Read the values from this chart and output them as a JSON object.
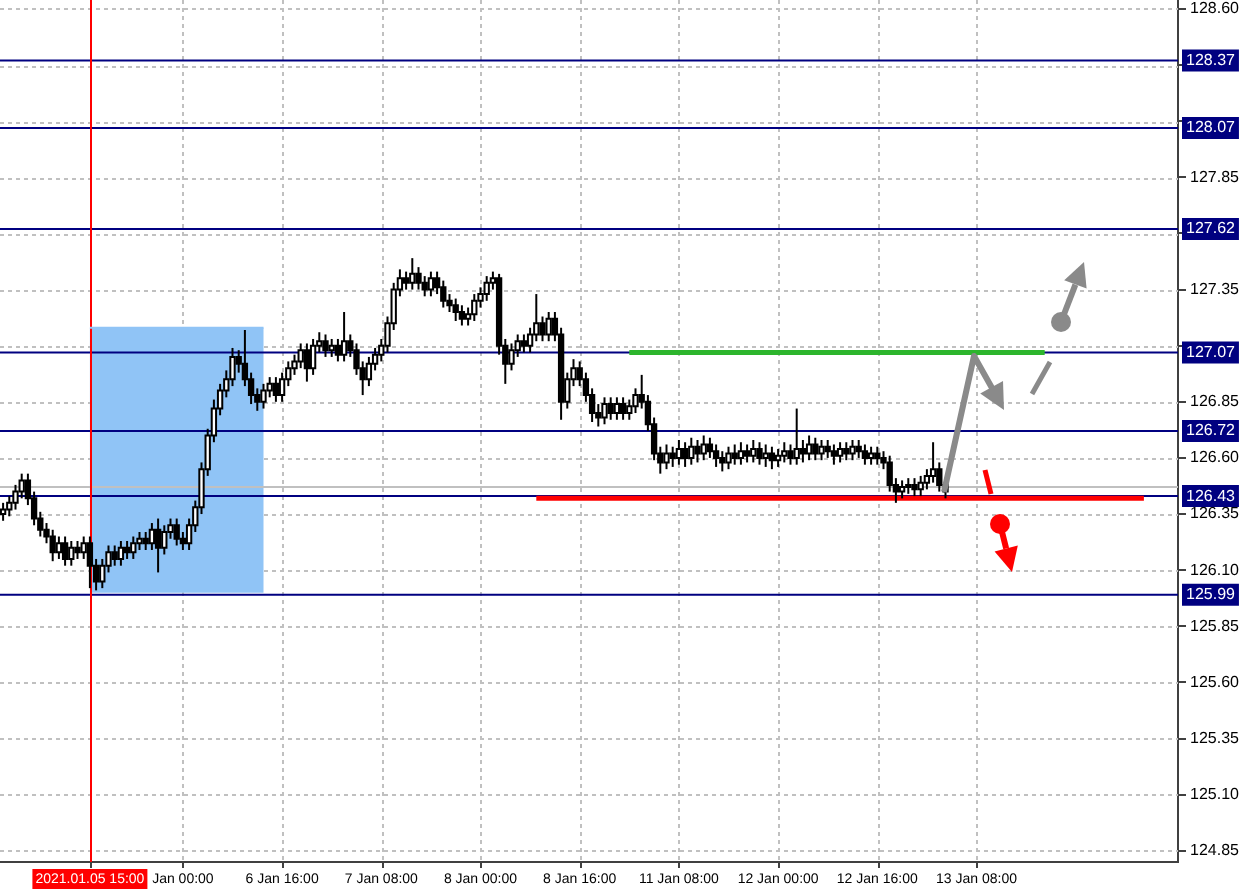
{
  "chart_data": {
    "type": "candlestick",
    "categories": [
      null,
      null,
      null,
      null,
      null,
      null,
      null,
      null,
      null,
      null,
      null,
      null,
      null,
      null,
      "2021.01.05 15:00",
      null,
      null,
      null,
      null,
      null,
      null,
      null,
      null,
      null,
      null,
      null,
      null,
      null,
      null,
      "Jan 00:00",
      null,
      null,
      null,
      null,
      null,
      null,
      null,
      null,
      null,
      null,
      null,
      null,
      null,
      null,
      null,
      "6 Jan 16:00",
      null,
      null,
      null,
      null,
      null,
      null,
      null,
      null,
      null,
      null,
      null,
      null,
      null,
      null,
      null,
      "7 Jan 08:00",
      null,
      null,
      null,
      null,
      null,
      null,
      null,
      null,
      null,
      null,
      null,
      null,
      null,
      null,
      null,
      "8 Jan 00:00",
      null,
      null,
      null,
      null,
      null,
      null,
      null,
      null,
      null,
      null,
      null,
      null,
      null,
      null,
      null,
      "8 Jan 16:00",
      null,
      null,
      null,
      null,
      null,
      null,
      null,
      null,
      null,
      null,
      null,
      null,
      null,
      null,
      null,
      "11 Jan 08:00",
      null,
      null,
      null,
      null,
      null,
      null,
      null,
      null,
      null,
      null,
      null,
      null,
      null,
      null,
      null,
      "12 Jan 00:00",
      null,
      null,
      null,
      null,
      null,
      null,
      null,
      null,
      null,
      null,
      null,
      null,
      null,
      null,
      null,
      "12 Jan 16:00",
      null,
      null,
      null,
      null,
      null,
      null,
      null,
      null,
      null,
      null,
      null,
      null,
      null,
      null,
      null,
      "13 Jan 08:00",
      null,
      null,
      null,
      null,
      null,
      null,
      null,
      null,
      null,
      null,
      null,
      null,
      null,
      null,
      null,
      null,
      null,
      null,
      null,
      null,
      null,
      null,
      null,
      null,
      null,
      null,
      null,
      null,
      null,
      null,
      null,
      null
    ],
    "ohlc": [
      [
        126.35,
        126.4,
        126.32,
        126.37
      ],
      [
        126.37,
        126.43,
        126.34,
        126.4
      ],
      [
        126.4,
        126.48,
        126.37,
        126.45
      ],
      [
        126.45,
        126.53,
        126.42,
        126.5
      ],
      [
        126.5,
        126.53,
        126.39,
        126.42
      ],
      [
        126.42,
        126.45,
        126.3,
        126.33
      ],
      [
        126.33,
        126.36,
        126.25,
        126.28
      ],
      [
        126.28,
        126.31,
        126.22,
        126.25
      ],
      [
        126.25,
        126.28,
        126.14,
        126.18
      ],
      [
        126.18,
        126.25,
        126.15,
        126.22
      ],
      [
        126.22,
        126.25,
        126.12,
        126.15
      ],
      [
        126.15,
        126.23,
        126.12,
        126.2
      ],
      [
        126.2,
        126.23,
        126.15,
        126.18
      ],
      [
        126.18,
        126.25,
        126.15,
        126.22
      ],
      [
        126.22,
        126.25,
        126.02,
        126.12
      ],
      [
        126.12,
        126.15,
        126.01,
        126.05
      ],
      [
        126.05,
        126.15,
        126.02,
        126.12
      ],
      [
        126.12,
        126.21,
        126.09,
        126.18
      ],
      [
        126.18,
        126.21,
        126.12,
        126.15
      ],
      [
        126.15,
        126.23,
        126.12,
        126.2
      ],
      [
        126.2,
        126.23,
        126.15,
        126.18
      ],
      [
        126.18,
        126.25,
        126.15,
        126.22
      ],
      [
        126.22,
        126.27,
        126.19,
        126.24
      ],
      [
        126.24,
        126.27,
        126.19,
        126.22
      ],
      [
        126.22,
        126.31,
        126.19,
        126.28
      ],
      [
        126.28,
        126.33,
        126.09,
        126.2
      ],
      [
        126.2,
        126.3,
        126.17,
        126.27
      ],
      [
        126.27,
        126.33,
        126.24,
        126.3
      ],
      [
        126.3,
        126.33,
        126.21,
        126.24
      ],
      [
        126.24,
        126.27,
        126.19,
        126.22
      ],
      [
        126.22,
        126.33,
        126.19,
        126.3
      ],
      [
        126.3,
        126.41,
        126.27,
        126.38
      ],
      [
        126.38,
        126.58,
        126.35,
        126.55
      ],
      [
        126.55,
        126.73,
        126.52,
        126.7
      ],
      [
        126.7,
        126.86,
        126.67,
        126.82
      ],
      [
        126.82,
        126.93,
        126.79,
        126.9
      ],
      [
        126.9,
        126.99,
        126.87,
        126.95
      ],
      [
        126.95,
        127.09,
        126.92,
        127.05
      ],
      [
        127.05,
        127.08,
        126.98,
        127.02
      ],
      [
        127.02,
        127.17,
        126.92,
        126.95
      ],
      [
        126.95,
        126.98,
        126.84,
        126.88
      ],
      [
        126.88,
        126.91,
        126.81,
        126.85
      ],
      [
        126.85,
        126.93,
        126.82,
        126.9
      ],
      [
        126.9,
        126.96,
        126.87,
        126.93
      ],
      [
        126.93,
        126.96,
        126.85,
        126.88
      ],
      [
        126.88,
        126.98,
        126.85,
        126.95
      ],
      [
        126.95,
        127.03,
        126.92,
        127.0
      ],
      [
        127.0,
        127.06,
        126.97,
        127.03
      ],
      [
        127.03,
        127.11,
        127.0,
        127.08
      ],
      [
        127.08,
        127.11,
        126.94,
        127.0
      ],
      [
        127.0,
        127.13,
        126.97,
        127.1
      ],
      [
        127.1,
        127.16,
        127.07,
        127.12
      ],
      [
        127.12,
        127.15,
        127.05,
        127.08
      ],
      [
        127.08,
        127.13,
        127.05,
        127.1
      ],
      [
        127.1,
        127.13,
        127.03,
        127.06
      ],
      [
        127.06,
        127.25,
        127.03,
        127.12
      ],
      [
        127.12,
        127.15,
        127.05,
        127.08
      ],
      [
        127.08,
        127.11,
        126.97,
        127.0
      ],
      [
        127.0,
        127.03,
        126.88,
        126.95
      ],
      [
        126.95,
        127.05,
        126.92,
        127.02
      ],
      [
        127.02,
        127.09,
        126.99,
        127.06
      ],
      [
        127.06,
        127.13,
        127.03,
        127.1
      ],
      [
        127.1,
        127.23,
        127.07,
        127.2
      ],
      [
        127.2,
        127.38,
        127.17,
        127.35
      ],
      [
        127.35,
        127.44,
        127.32,
        127.4
      ],
      [
        127.4,
        127.43,
        127.35,
        127.38
      ],
      [
        127.38,
        127.49,
        127.35,
        127.42
      ],
      [
        127.42,
        127.45,
        127.35,
        127.38
      ],
      [
        127.38,
        127.41,
        127.32,
        127.35
      ],
      [
        127.35,
        127.43,
        127.32,
        127.4
      ],
      [
        127.4,
        127.43,
        127.33,
        127.36
      ],
      [
        127.36,
        127.39,
        127.27,
        127.3
      ],
      [
        127.3,
        127.33,
        127.25,
        127.28
      ],
      [
        127.28,
        127.31,
        127.21,
        127.25
      ],
      [
        127.25,
        127.28,
        127.19,
        127.22
      ],
      [
        127.22,
        127.27,
        127.19,
        127.24
      ],
      [
        127.24,
        127.33,
        127.21,
        127.3
      ],
      [
        127.3,
        127.36,
        127.27,
        127.33
      ],
      [
        127.33,
        127.41,
        127.3,
        127.38
      ],
      [
        127.38,
        127.43,
        127.35,
        127.4
      ],
      [
        127.4,
        127.42,
        127.06,
        127.1
      ],
      [
        127.1,
        127.13,
        126.93,
        127.02
      ],
      [
        127.02,
        127.11,
        126.99,
        127.08
      ],
      [
        127.08,
        127.15,
        127.05,
        127.12
      ],
      [
        127.12,
        127.15,
        127.07,
        127.1
      ],
      [
        127.1,
        127.18,
        127.07,
        127.15
      ],
      [
        127.15,
        127.33,
        127.12,
        127.2
      ],
      [
        127.2,
        127.23,
        127.12,
        127.15
      ],
      [
        127.15,
        127.25,
        127.12,
        127.22
      ],
      [
        127.22,
        127.25,
        127.12,
        127.15
      ],
      [
        127.15,
        127.18,
        126.77,
        126.85
      ],
      [
        126.85,
        126.98,
        126.82,
        126.95
      ],
      [
        126.95,
        127.04,
        126.92,
        127.0
      ],
      [
        127.0,
        127.03,
        126.92,
        126.95
      ],
      [
        126.95,
        126.98,
        126.85,
        126.88
      ],
      [
        126.88,
        126.91,
        126.76,
        126.8
      ],
      [
        126.8,
        126.84,
        126.74,
        126.78
      ],
      [
        126.78,
        126.87,
        126.75,
        126.84
      ],
      [
        126.84,
        126.87,
        126.77,
        126.8
      ],
      [
        126.8,
        126.87,
        126.77,
        126.84
      ],
      [
        126.84,
        126.87,
        126.77,
        126.8
      ],
      [
        126.8,
        126.86,
        126.77,
        126.83
      ],
      [
        126.83,
        126.91,
        126.8,
        126.88
      ],
      [
        126.88,
        126.97,
        126.82,
        126.85
      ],
      [
        126.85,
        126.88,
        126.72,
        126.75
      ],
      [
        126.75,
        126.78,
        126.59,
        126.62
      ],
      [
        126.62,
        126.65,
        126.53,
        126.58
      ],
      [
        126.58,
        126.66,
        126.55,
        126.62
      ],
      [
        126.62,
        126.65,
        126.56,
        126.6
      ],
      [
        126.6,
        126.68,
        126.57,
        126.64
      ],
      [
        126.64,
        126.67,
        126.56,
        126.6
      ],
      [
        126.6,
        126.69,
        126.57,
        126.65
      ],
      [
        126.65,
        126.68,
        126.58,
        126.62
      ],
      [
        126.62,
        126.7,
        126.59,
        126.66
      ],
      [
        126.66,
        126.69,
        126.6,
        126.63
      ],
      [
        126.63,
        126.66,
        126.56,
        126.6
      ],
      [
        126.6,
        126.63,
        126.54,
        126.58
      ],
      [
        126.58,
        126.65,
        126.55,
        126.62
      ],
      [
        126.62,
        126.66,
        126.57,
        126.6
      ],
      [
        126.6,
        126.67,
        126.57,
        126.63
      ],
      [
        126.63,
        126.66,
        126.58,
        126.61
      ],
      [
        126.61,
        126.68,
        126.58,
        126.64
      ],
      [
        126.64,
        126.67,
        126.57,
        126.6
      ],
      [
        126.6,
        126.66,
        126.56,
        126.62
      ],
      [
        126.62,
        126.65,
        126.55,
        126.59
      ],
      [
        126.59,
        126.64,
        126.56,
        126.61
      ],
      [
        126.61,
        126.67,
        126.58,
        126.63
      ],
      [
        126.63,
        126.66,
        126.57,
        126.6
      ],
      [
        126.6,
        126.82,
        126.57,
        126.64
      ],
      [
        126.64,
        126.68,
        126.58,
        126.62
      ],
      [
        126.62,
        126.7,
        126.59,
        126.66
      ],
      [
        126.66,
        126.69,
        126.59,
        126.62
      ],
      [
        126.62,
        126.68,
        126.59,
        126.65
      ],
      [
        126.65,
        126.68,
        126.6,
        126.63
      ],
      [
        126.63,
        126.66,
        126.57,
        126.61
      ],
      [
        126.61,
        126.67,
        126.58,
        126.64
      ],
      [
        126.64,
        126.67,
        126.59,
        126.62
      ],
      [
        126.62,
        126.68,
        126.59,
        126.65
      ],
      [
        126.65,
        126.68,
        126.6,
        126.63
      ],
      [
        126.63,
        126.66,
        126.57,
        126.6
      ],
      [
        126.6,
        126.65,
        126.57,
        126.62
      ],
      [
        126.62,
        126.65,
        126.57,
        126.6
      ],
      [
        126.6,
        126.63,
        126.55,
        126.58
      ],
      [
        126.58,
        126.61,
        126.45,
        126.48
      ],
      [
        126.48,
        126.51,
        126.4,
        126.45
      ],
      [
        126.45,
        126.5,
        126.42,
        126.47
      ],
      [
        126.47,
        126.51,
        126.44,
        126.48
      ],
      [
        126.48,
        126.51,
        126.43,
        126.46
      ],
      [
        126.46,
        126.52,
        126.43,
        126.49
      ],
      [
        126.49,
        126.55,
        126.46,
        126.52
      ],
      [
        126.52,
        126.67,
        126.49,
        126.55
      ],
      [
        126.55,
        126.58,
        126.45,
        126.48
      ],
      [
        126.48,
        126.51,
        126.42,
        126.45
      ],
      null,
      null,
      null,
      null,
      null,
      null,
      null,
      null,
      null,
      null,
      null,
      null,
      null,
      null,
      null,
      null,
      null,
      null,
      null,
      null,
      null,
      null,
      null,
      null,
      null,
      null,
      null,
      null,
      null,
      null,
      null,
      null,
      null,
      null,
      null,
      null,
      null
    ],
    "color": "#000000",
    "colors": [
      "#ffffff",
      "#ffffff",
      "#ffffff",
      "#ffffff",
      "#000000",
      "#000000",
      "#000000",
      "#000000",
      "#000000",
      "#ffffff",
      "#000000",
      "#ffffff",
      "#000000",
      "#ffffff",
      "#000000",
      "#000000",
      "#ffffff",
      "#ffffff",
      "#000000",
      "#ffffff",
      "#000000",
      "#ffffff",
      "#ffffff",
      "#000000",
      "#ffffff",
      "#000000",
      "#ffffff",
      "#ffffff",
      "#000000",
      "#000000",
      "#ffffff",
      "#ffffff",
      "#ffffff",
      "#ffffff",
      "#ffffff",
      "#ffffff",
      "#ffffff",
      "#ffffff",
      "#000000",
      "#000000",
      "#000000",
      "#000000",
      "#ffffff",
      "#ffffff",
      "#000000",
      "#ffffff",
      "#ffffff",
      "#ffffff",
      "#ffffff",
      "#000000",
      "#ffffff",
      "#ffffff",
      "#000000",
      "#ffffff",
      "#000000",
      "#ffffff",
      "#000000",
      "#000000",
      "#000000",
      "#ffffff",
      "#ffffff",
      "#ffffff",
      "#ffffff",
      "#ffffff",
      "#ffffff",
      "#000000",
      "#ffffff",
      "#000000",
      "#000000",
      "#ffffff",
      "#000000",
      "#000000",
      "#000000",
      "#000000",
      "#000000",
      "#ffffff",
      "#ffffff",
      "#ffffff",
      "#ffffff",
      "#ffffff",
      "#000000",
      "#000000",
      "#ffffff",
      "#ffffff",
      "#000000",
      "#ffffff",
      "#ffffff",
      "#000000",
      "#ffffff",
      "#000000",
      "#000000",
      "#ffffff",
      "#ffffff",
      "#000000",
      "#000000",
      "#000000",
      "#000000",
      "#ffffff",
      "#000000",
      "#ffffff",
      "#000000",
      "#ffffff",
      "#ffffff",
      "#000000",
      "#000000",
      "#000000",
      "#000000",
      "#ffffff",
      "#000000",
      "#ffffff",
      "#000000",
      "#ffffff",
      "#000000",
      "#ffffff",
      "#000000",
      "#000000",
      "#000000",
      "#ffffff",
      "#000000",
      "#ffffff",
      "#000000",
      "#ffffff",
      "#000000",
      "#ffffff",
      "#000000",
      "#ffffff",
      "#ffffff",
      "#000000",
      "#ffffff",
      "#000000",
      "#ffffff",
      "#000000",
      "#ffffff",
      "#000000",
      "#000000",
      "#ffffff",
      "#000000",
      "#ffffff",
      "#000000",
      "#000000",
      "#ffffff",
      "#000000",
      "#000000",
      "#000000",
      "#000000",
      "#ffffff",
      "#ffffff",
      "#000000",
      "#ffffff",
      "#ffffff",
      "#ffffff",
      "#000000",
      "#000000",
      null,
      null,
      null,
      null,
      null,
      null,
      null,
      null,
      null,
      null,
      null,
      null,
      null,
      null,
      null,
      null,
      null,
      null,
      null,
      null,
      null,
      null,
      null,
      null,
      null,
      null,
      null,
      null,
      null,
      null,
      null,
      null,
      null,
      null,
      null,
      null,
      null
    ],
    "series": [
      {
        "type": "line",
        "color": "#90c4f6",
        "values": [
          null,
          null,
          null,
          null,
          null,
          null,
          null,
          null,
          null,
          null,
          null,
          null,
          null,
          null,
          127.18,
          127.18,
          127.18,
          127.18,
          127.18,
          127.18,
          127.18,
          127.18,
          127.18,
          127.18,
          127.18,
          127.18,
          127.18,
          127.18,
          127.18,
          127.18,
          127.18,
          127.18,
          127.18,
          127.18,
          127.18,
          127.18,
          127.18,
          127.18,
          127.18,
          127.18,
          127.18,
          127.18,
          127.18,
          null,
          null,
          null,
          null,
          null,
          null,
          null,
          null,
          null,
          null,
          null,
          null,
          null,
          null,
          null,
          null,
          null,
          null,
          null,
          null,
          null,
          null,
          null,
          null,
          null,
          null,
          null,
          null,
          null,
          null,
          null,
          null,
          null,
          null,
          null,
          null,
          null,
          null,
          null,
          null,
          null,
          null,
          null,
          null,
          null,
          null,
          null,
          null,
          null,
          null,
          null,
          null,
          null,
          null,
          null,
          null,
          null,
          null,
          null,
          null,
          null,
          null,
          null,
          null,
          null,
          null,
          null,
          null,
          null,
          null,
          null,
          null,
          null,
          null,
          null,
          null,
          null,
          null,
          null,
          null,
          null,
          null,
          null,
          null,
          null,
          null,
          null,
          null,
          null,
          null,
          null,
          null,
          null,
          null,
          null,
          null,
          null,
          null,
          null,
          null,
          null,
          null,
          null,
          null,
          null,
          null,
          null,
          null,
          null,
          null,
          null,
          null,
          null,
          null,
          null,
          null,
          null,
          null,
          null,
          null,
          null,
          null,
          null,
          null,
          null,
          null,
          null,
          null,
          null,
          null,
          null,
          null,
          null,
          null,
          null,
          null,
          null,
          null,
          null,
          null,
          null,
          null,
          null,
          null,
          null,
          null,
          null
        ],
        "upper": [
          null,
          null,
          null,
          null,
          null,
          null,
          null,
          null,
          null,
          null,
          null,
          null,
          null,
          null,
          127.18,
          127.18,
          127.18,
          127.18,
          127.18,
          127.18,
          127.18,
          127.18,
          127.18,
          127.18,
          127.18,
          127.18,
          127.18,
          127.18,
          127.18,
          127.18,
          127.18,
          127.18,
          127.18,
          127.18,
          127.18,
          127.18,
          127.18,
          127.18,
          127.18,
          127.18,
          127.18,
          127.18,
          127.18,
          null,
          null,
          null,
          null,
          null,
          null,
          null,
          null,
          null,
          null,
          null,
          null,
          null,
          null,
          null,
          null,
          null,
          null,
          null,
          null,
          null,
          null,
          null,
          null,
          null,
          null,
          null,
          null,
          null,
          null,
          null,
          null,
          null,
          null,
          null,
          null,
          null,
          null,
          null,
          null,
          null,
          null,
          null,
          null,
          null,
          null,
          null,
          null,
          null,
          null,
          null,
          null,
          null,
          null,
          null,
          null,
          null,
          null,
          null,
          null,
          null,
          null,
          null,
          null,
          null,
          null,
          null,
          null,
          null,
          null,
          null,
          null,
          null,
          null,
          null,
          null,
          null,
          null,
          null,
          null,
          null,
          null,
          null,
          null,
          null,
          null,
          null,
          null,
          null,
          null,
          null,
          null,
          null,
          null,
          null,
          null,
          null,
          null,
          null,
          null,
          null,
          null,
          null,
          null,
          null,
          null,
          null,
          null,
          null,
          null,
          null,
          null,
          null,
          null,
          null,
          null,
          null,
          null,
          null,
          null,
          null,
          null,
          null,
          null,
          null,
          null,
          null,
          null,
          null,
          null,
          null,
          null,
          null,
          null,
          null,
          null,
          null,
          null,
          null,
          null,
          null,
          null,
          null,
          null,
          null,
          null,
          null
        ],
        "lower": [
          null,
          null,
          null,
          null,
          null,
          null,
          null,
          null,
          null,
          null,
          null,
          null,
          null,
          null,
          126.0,
          126.0,
          126.0,
          126.0,
          126.0,
          126.0,
          126.0,
          126.0,
          126.0,
          126.0,
          126.0,
          126.0,
          126.0,
          126.0,
          126.0,
          126.0,
          126.0,
          126.0,
          126.0,
          126.0,
          126.0,
          126.0,
          126.0,
          126.0,
          126.0,
          126.0,
          126.0,
          126.0,
          126.0,
          null,
          null,
          null,
          null,
          null,
          null,
          null,
          null,
          null,
          null,
          null,
          null,
          null,
          null,
          null,
          null,
          null,
          null,
          null,
          null,
          null,
          null,
          null,
          null,
          null,
          null,
          null,
          null,
          null,
          null,
          null,
          null,
          null,
          null,
          null,
          null,
          null,
          null,
          null,
          null,
          null,
          null,
          null,
          null,
          null,
          null,
          null,
          null,
          null,
          null,
          null,
          null,
          null,
          null,
          null,
          null,
          null,
          null,
          null,
          null,
          null,
          null,
          null,
          null,
          null,
          null,
          null,
          null,
          null,
          null,
          null,
          null,
          null,
          null,
          null,
          null,
          null,
          null,
          null,
          null,
          null,
          null,
          null,
          null,
          null,
          null,
          null,
          null,
          null,
          null,
          null,
          null,
          null,
          null,
          null,
          null,
          null,
          null,
          null,
          null,
          null,
          null,
          null,
          null,
          null,
          null,
          null,
          null,
          null,
          null,
          null,
          null,
          null,
          null,
          null,
          null,
          null,
          null,
          null,
          null,
          null,
          null,
          null,
          null,
          null,
          null,
          null,
          null,
          null,
          null,
          null,
          null,
          null,
          null,
          null,
          null,
          null,
          null,
          null,
          null,
          null,
          null,
          null,
          null,
          null,
          null,
          null
        ]
      },
      {
        "type": "line",
        "color": "#2db52d",
        "values": [
          null,
          null,
          null,
          null,
          null,
          null,
          null,
          null,
          null,
          null,
          null,
          null,
          null,
          null,
          null,
          null,
          null,
          null,
          null,
          null,
          null,
          null,
          null,
          null,
          null,
          null,
          null,
          null,
          null,
          null,
          null,
          null,
          null,
          null,
          null,
          null,
          null,
          null,
          null,
          null,
          null,
          null,
          null,
          null,
          null,
          null,
          null,
          null,
          null,
          null,
          null,
          null,
          null,
          null,
          null,
          null,
          null,
          null,
          null,
          null,
          null,
          null,
          null,
          null,
          null,
          null,
          null,
          null,
          null,
          null,
          null,
          null,
          null,
          null,
          null,
          null,
          null,
          null,
          null,
          null,
          null,
          null,
          null,
          null,
          null,
          null,
          null,
          null,
          null,
          null,
          null,
          null,
          null,
          null,
          null,
          null,
          null,
          null,
          null,
          null,
          null,
          127.07,
          127.07,
          127.07,
          127.07,
          127.07,
          127.07,
          127.07,
          127.07,
          127.07,
          127.07,
          127.07,
          127.07,
          127.07,
          127.07,
          127.07,
          127.07,
          127.07,
          127.07,
          127.07,
          127.07,
          127.07,
          127.07,
          127.07,
          127.07,
          127.07,
          127.07,
          127.07,
          127.07,
          127.07,
          127.07,
          127.07,
          127.07,
          127.07,
          127.07,
          127.07,
          127.07,
          127.07,
          127.07,
          127.07,
          127.07,
          127.07,
          127.07,
          127.07,
          127.07,
          127.07,
          127.07,
          127.07,
          127.07,
          127.07,
          127.07,
          127.07,
          127.07,
          127.07,
          127.07,
          127.07,
          127.07,
          127.07,
          127.07,
          127.07,
          127.07,
          127.07,
          127.07,
          127.07,
          127.07,
          127.07,
          127.07,
          127.07,
          127.07,
          null,
          null,
          null,
          null,
          null,
          null,
          null,
          null,
          null,
          null,
          null,
          null,
          null,
          null,
          null,
          null,
          null,
          null,
          null,
          null,
          null
        ]
      },
      {
        "type": "line",
        "color": "#ff0000",
        "values": [
          null,
          null,
          null,
          null,
          null,
          null,
          null,
          null,
          null,
          null,
          null,
          null,
          null,
          null,
          null,
          null,
          null,
          null,
          null,
          null,
          null,
          null,
          null,
          null,
          null,
          null,
          null,
          null,
          null,
          null,
          null,
          null,
          null,
          null,
          null,
          null,
          null,
          null,
          null,
          null,
          null,
          null,
          null,
          null,
          null,
          null,
          null,
          null,
          null,
          null,
          null,
          null,
          null,
          null,
          null,
          null,
          null,
          null,
          null,
          null,
          null,
          null,
          null,
          null,
          null,
          null,
          null,
          null,
          null,
          null,
          null,
          null,
          null,
          null,
          null,
          null,
          null,
          null,
          null,
          null,
          null,
          null,
          null,
          null,
          null,
          null,
          126.42,
          126.42,
          126.42,
          126.42,
          126.42,
          126.42,
          126.42,
          126.42,
          126.42,
          126.42,
          126.42,
          126.42,
          126.42,
          126.42,
          126.42,
          126.42,
          126.42,
          126.42,
          126.42,
          126.42,
          126.42,
          126.42,
          126.42,
          126.42,
          126.42,
          126.42,
          126.42,
          126.42,
          126.42,
          126.42,
          126.42,
          126.42,
          126.42,
          126.42,
          126.42,
          126.42,
          126.42,
          126.42,
          126.42,
          126.42,
          126.42,
          126.42,
          126.42,
          126.42,
          126.42,
          126.42,
          126.42,
          126.42,
          126.42,
          126.42,
          126.42,
          126.42,
          126.42,
          126.42,
          126.42,
          126.42,
          126.42,
          126.42,
          126.42,
          126.42,
          126.42,
          126.42,
          126.42,
          126.42,
          126.42,
          126.42,
          126.42,
          126.42,
          126.42,
          126.42,
          126.42,
          126.42,
          126.42,
          126.42,
          126.42,
          126.42,
          126.42,
          126.42,
          126.42,
          126.42,
          126.42,
          126.42,
          126.42,
          126.42,
          126.42,
          126.42,
          126.42,
          126.42,
          126.42,
          126.42,
          126.42,
          126.42,
          126.42,
          126.42,
          126.42,
          126.42,
          126.42,
          126.42,
          126.42,
          null,
          null,
          null,
          null,
          null
        ]
      }
    ],
    "ylim": [
      124.8,
      128.64
    ],
    "yticks": [
      124.85,
      {
        "value": 125.1,
        "label": "125.10"
      },
      125.35,
      {
        "value": 125.6,
        "label": "125.60"
      },
      125.85,
      {
        "value": 126.1,
        "label": "126.10"
      },
      126.35,
      {
        "value": 126.6,
        "label": "126.60"
      },
      126.85,
      {
        "value": 127.1,
        "label": null
      },
      127.35,
      {
        "value": 127.6,
        "label": null
      },
      127.85,
      {
        "value": 128.1,
        "label": null
      },
      {
        "value": 128.35,
        "label": null
      },
      {
        "value": 128.6,
        "label": "128.60"
      }
    ],
    "grid": true,
    "ref_lines": [
      {
        "axis": "y",
        "value": 126.47,
        "color": "#c0c0c0"
      },
      {
        "axis": "y",
        "value": 128.37,
        "label": "128.37",
        "color": "#000080"
      },
      {
        "axis": "y",
        "value": 128.07,
        "label": "128.07",
        "color": "#000080"
      },
      {
        "axis": "y",
        "value": 127.62,
        "label": "127.62",
        "color": "#000080"
      },
      {
        "axis": "y",
        "value": 127.07,
        "label": "127.07",
        "color": "#000080"
      },
      {
        "axis": "y",
        "value": 126.72,
        "label": "126.72",
        "color": "#000080"
      },
      {
        "axis": "y",
        "value": 126.43,
        "label": "126.43",
        "color": "#000080"
      },
      {
        "axis": "y",
        "value": 125.99,
        "label": "125.99",
        "color": "#000080"
      },
      {
        "axis": "x",
        "value": "2021.01.05 15:00",
        "color": "#ff0000"
      }
    ]
  }
}
